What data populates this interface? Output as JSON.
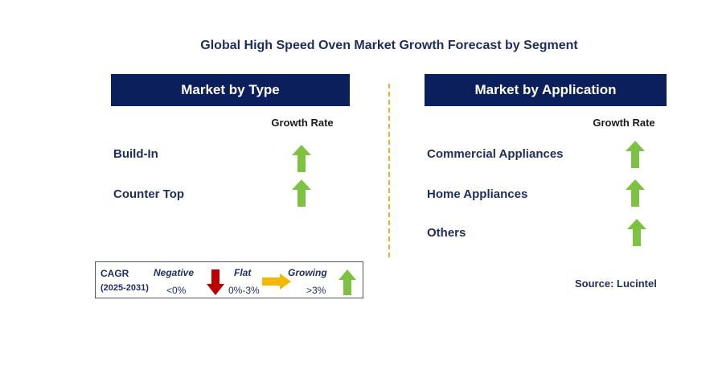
{
  "title": "Global High Speed Oven Market Growth Forecast by Segment",
  "chart_data": {
    "type": "table",
    "title": "Global High Speed Oven Market Growth Forecast by Segment",
    "panels": [
      {
        "header": "Market by Type",
        "column_label": "Growth Rate",
        "rows": [
          {
            "label": "Build-In",
            "trend": "growing"
          },
          {
            "label": "Counter Top",
            "trend": "growing"
          }
        ]
      },
      {
        "header": "Market by Application",
        "column_label": "Growth Rate",
        "rows": [
          {
            "label": "Commercial Appliances",
            "trend": "growing"
          },
          {
            "label": "Home Appliances",
            "trend": "growing"
          },
          {
            "label": "Others",
            "trend": "growing"
          }
        ]
      }
    ]
  },
  "legend": {
    "cagr_label": "CAGR",
    "period": "(2025-2031)",
    "negative_label": "Negative",
    "negative_range": "<0%",
    "flat_label": "Flat",
    "flat_range": "0%-3%",
    "growing_label": "Growing",
    "growing_range": ">3%"
  },
  "source": "Source: Lucintel",
  "colors": {
    "header_bg": "#0b1f5c",
    "growing": "#7dc242",
    "flat": "#f5b800",
    "negative": "#c00000",
    "divider": "#f2b01e"
  }
}
